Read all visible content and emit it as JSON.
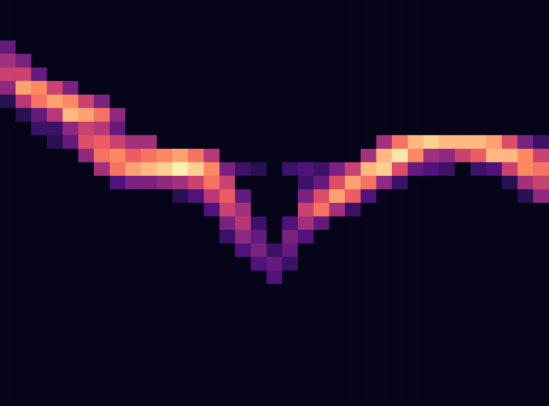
{
  "chart_data": {
    "type": "heatmap",
    "tick_labels": false,
    "color_range": [
      0,
      100
    ],
    "values": [
      [
        0,
        0,
        0,
        0,
        0,
        0,
        0,
        0,
        0,
        0,
        0,
        0,
        0,
        0,
        0,
        0,
        0,
        0,
        0,
        0,
        0,
        0,
        0,
        0,
        0,
        0,
        0,
        0,
        0,
        0,
        0,
        0,
        0,
        0,
        0
      ],
      [
        0,
        0,
        0,
        0,
        0,
        0,
        0,
        0,
        0,
        0,
        0,
        0,
        0,
        0,
        0,
        0,
        0,
        0,
        0,
        0,
        0,
        0,
        0,
        0,
        0,
        0,
        0,
        0,
        0,
        0,
        0,
        0,
        0,
        0,
        0
      ],
      [
        0,
        0,
        0,
        0,
        0,
        0,
        0,
        0,
        0,
        0,
        0,
        0,
        0,
        0,
        0,
        0,
        0,
        0,
        0,
        0,
        0,
        0,
        0,
        0,
        0,
        0,
        0,
        0,
        0,
        0,
        0,
        0,
        0,
        0,
        0
      ],
      [
        30,
        0,
        0,
        0,
        0,
        0,
        0,
        0,
        0,
        0,
        0,
        0,
        0,
        0,
        0,
        0,
        0,
        0,
        0,
        0,
        0,
        0,
        0,
        0,
        0,
        0,
        0,
        0,
        0,
        0,
        0,
        0,
        0,
        0,
        0
      ],
      [
        45,
        35,
        0,
        0,
        0,
        0,
        0,
        0,
        0,
        0,
        0,
        0,
        0,
        0,
        0,
        0,
        0,
        0,
        0,
        0,
        0,
        0,
        0,
        0,
        0,
        0,
        0,
        0,
        0,
        0,
        0,
        0,
        0,
        0,
        0
      ],
      [
        55,
        55,
        30,
        0,
        0,
        0,
        0,
        0,
        0,
        0,
        0,
        0,
        0,
        0,
        0,
        0,
        0,
        0,
        0,
        0,
        0,
        0,
        0,
        0,
        0,
        0,
        0,
        0,
        0,
        0,
        0,
        0,
        0,
        0,
        0
      ],
      [
        40,
        80,
        75,
        55,
        35,
        0,
        0,
        0,
        0,
        0,
        0,
        0,
        0,
        0,
        0,
        0,
        0,
        0,
        0,
        0,
        0,
        0,
        0,
        0,
        0,
        0,
        0,
        0,
        0,
        0,
        0,
        0,
        0,
        0,
        0
      ],
      [
        15,
        50,
        70,
        80,
        75,
        55,
        35,
        0,
        0,
        0,
        0,
        0,
        0,
        0,
        0,
        0,
        0,
        0,
        0,
        0,
        0,
        0,
        0,
        0,
        0,
        0,
        0,
        0,
        0,
        0,
        0,
        0,
        0,
        0,
        0
      ],
      [
        0,
        15,
        30,
        50,
        85,
        80,
        70,
        40,
        0,
        0,
        0,
        0,
        0,
        0,
        0,
        0,
        0,
        0,
        0,
        0,
        0,
        0,
        0,
        0,
        0,
        0,
        0,
        0,
        0,
        0,
        0,
        0,
        0,
        0,
        0
      ],
      [
        0,
        0,
        20,
        20,
        40,
        55,
        50,
        30,
        0,
        0,
        0,
        0,
        0,
        0,
        0,
        0,
        0,
        0,
        0,
        0,
        0,
        0,
        0,
        0,
        0,
        0,
        0,
        0,
        0,
        0,
        0,
        0,
        0,
        0,
        0
      ],
      [
        0,
        0,
        0,
        15,
        30,
        60,
        65,
        55,
        45,
        45,
        0,
        0,
        0,
        0,
        0,
        0,
        0,
        0,
        0,
        0,
        0,
        0,
        0,
        0,
        45,
        70,
        85,
        90,
        85,
        85,
        85,
        80,
        60,
        35,
        20
      ],
      [
        0,
        0,
        0,
        0,
        0,
        40,
        70,
        75,
        65,
        70,
        75,
        80,
        70,
        50,
        0,
        0,
        0,
        0,
        0,
        0,
        0,
        0,
        0,
        45,
        85,
        95,
        75,
        45,
        40,
        55,
        65,
        85,
        85,
        75,
        55
      ],
      [
        0,
        0,
        0,
        0,
        0,
        0,
        45,
        70,
        80,
        85,
        90,
        97,
        90,
        75,
        35,
        20,
        15,
        0,
        20,
        25,
        20,
        35,
        55,
        85,
        90,
        60,
        30,
        25,
        20,
        0,
        20,
        25,
        55,
        75,
        70
      ],
      [
        0,
        0,
        0,
        0,
        0,
        0,
        0,
        25,
        35,
        35,
        40,
        45,
        55,
        70,
        55,
        0,
        0,
        0,
        0,
        20,
        30,
        60,
        80,
        70,
        40,
        20,
        0,
        0,
        0,
        0,
        0,
        0,
        15,
        45,
        55
      ],
      [
        0,
        0,
        0,
        0,
        0,
        0,
        0,
        0,
        0,
        0,
        0,
        15,
        25,
        50,
        65,
        30,
        0,
        0,
        0,
        35,
        60,
        80,
        65,
        25,
        0,
        0,
        0,
        0,
        0,
        0,
        0,
        0,
        0,
        15,
        40
      ],
      [
        0,
        0,
        0,
        0,
        0,
        0,
        0,
        0,
        0,
        0,
        0,
        0,
        0,
        25,
        55,
        45,
        0,
        0,
        0,
        55,
        70,
        45,
        20,
        0,
        0,
        0,
        0,
        0,
        0,
        0,
        0,
        0,
        0,
        0,
        0
      ],
      [
        0,
        0,
        0,
        0,
        0,
        0,
        0,
        0,
        0,
        0,
        0,
        0,
        0,
        0,
        35,
        50,
        20,
        0,
        25,
        45,
        30,
        0,
        0,
        0,
        0,
        0,
        0,
        0,
        0,
        0,
        0,
        0,
        0,
        0,
        0
      ],
      [
        0,
        0,
        0,
        0,
        0,
        0,
        0,
        0,
        0,
        0,
        0,
        0,
        0,
        0,
        20,
        40,
        30,
        0,
        35,
        25,
        0,
        0,
        0,
        0,
        0,
        0,
        0,
        0,
        0,
        0,
        0,
        0,
        0,
        0,
        0
      ],
      [
        0,
        0,
        0,
        0,
        0,
        0,
        0,
        0,
        0,
        0,
        0,
        0,
        0,
        0,
        0,
        25,
        35,
        20,
        30,
        0,
        0,
        0,
        0,
        0,
        0,
        0,
        0,
        0,
        0,
        0,
        0,
        0,
        0,
        0,
        0
      ],
      [
        0,
        0,
        0,
        0,
        0,
        0,
        0,
        0,
        0,
        0,
        0,
        0,
        0,
        0,
        0,
        0,
        25,
        30,
        20,
        0,
        0,
        0,
        0,
        0,
        0,
        0,
        0,
        0,
        0,
        0,
        0,
        0,
        0,
        0,
        0
      ],
      [
        0,
        0,
        0,
        0,
        0,
        0,
        0,
        0,
        0,
        0,
        0,
        0,
        0,
        0,
        0,
        0,
        0,
        25,
        0,
        0,
        0,
        0,
        0,
        0,
        0,
        0,
        0,
        0,
        0,
        0,
        0,
        0,
        0,
        0,
        0
      ],
      [
        0,
        0,
        0,
        0,
        0,
        0,
        0,
        0,
        0,
        0,
        0,
        0,
        0,
        0,
        0,
        0,
        0,
        0,
        0,
        0,
        0,
        0,
        0,
        0,
        0,
        0,
        0,
        0,
        0,
        0,
        0,
        0,
        0,
        0,
        0
      ],
      [
        0,
        0,
        0,
        0,
        0,
        0,
        0,
        0,
        0,
        0,
        0,
        0,
        0,
        0,
        0,
        0,
        0,
        0,
        0,
        0,
        0,
        0,
        0,
        0,
        0,
        0,
        0,
        0,
        0,
        0,
        0,
        0,
        0,
        0,
        0
      ],
      [
        0,
        0,
        0,
        0,
        0,
        0,
        0,
        0,
        0,
        0,
        0,
        0,
        0,
        0,
        0,
        0,
        0,
        0,
        0,
        0,
        0,
        0,
        0,
        0,
        0,
        0,
        0,
        0,
        0,
        0,
        0,
        0,
        0,
        0,
        0
      ],
      [
        0,
        0,
        0,
        0,
        0,
        0,
        0,
        0,
        0,
        0,
        0,
        0,
        0,
        0,
        0,
        0,
        0,
        0,
        0,
        0,
        0,
        0,
        0,
        0,
        0,
        0,
        0,
        0,
        0,
        0,
        0,
        0,
        0,
        0,
        0
      ],
      [
        0,
        0,
        0,
        0,
        0,
        0,
        0,
        0,
        0,
        0,
        0,
        0,
        0,
        0,
        0,
        0,
        0,
        0,
        0,
        0,
        0,
        0,
        0,
        0,
        0,
        0,
        0,
        0,
        0,
        0,
        0,
        0,
        0,
        0,
        0
      ],
      [
        0,
        0,
        0,
        0,
        0,
        0,
        0,
        0,
        0,
        0,
        0,
        0,
        0,
        0,
        0,
        0,
        0,
        0,
        0,
        0,
        0,
        0,
        0,
        0,
        0,
        0,
        0,
        0,
        0,
        0,
        0,
        0,
        0,
        0,
        0
      ],
      [
        0,
        0,
        0,
        0,
        0,
        0,
        0,
        0,
        0,
        0,
        0,
        0,
        0,
        0,
        0,
        0,
        0,
        0,
        0,
        0,
        0,
        0,
        0,
        0,
        0,
        0,
        0,
        0,
        0,
        0,
        0,
        0,
        0,
        0,
        0
      ],
      [
        0,
        0,
        0,
        0,
        0,
        0,
        0,
        0,
        0,
        0,
        0,
        0,
        0,
        0,
        0,
        0,
        0,
        0,
        0,
        0,
        0,
        0,
        0,
        0,
        0,
        0,
        0,
        0,
        0,
        0,
        0,
        0,
        0,
        0,
        0
      ],
      [
        0,
        0,
        0,
        0,
        0,
        0,
        0,
        0,
        0,
        0,
        0,
        0,
        0,
        0,
        0,
        0,
        0,
        0,
        0,
        0,
        0,
        0,
        0,
        0,
        0,
        0,
        0,
        0,
        0,
        0,
        0,
        0,
        0,
        0,
        0
      ]
    ]
  }
}
